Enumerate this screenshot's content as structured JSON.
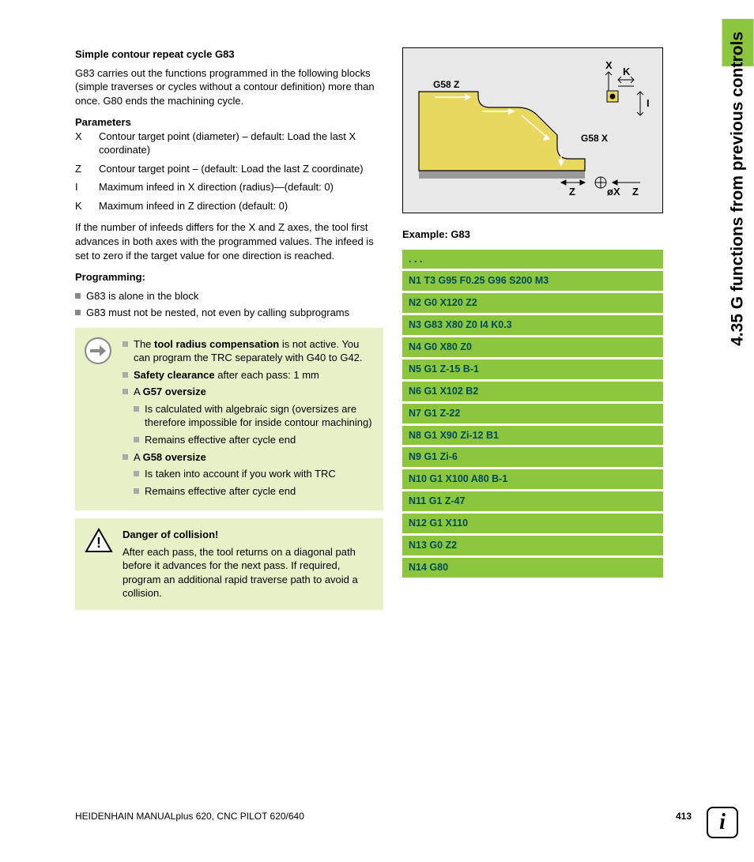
{
  "sideTab": "4.35 G functions from previous controls",
  "title": "Simple contour repeat cycle G83",
  "intro": "G83 carries out the functions programmed in the following blocks (simple traverses or cycles without a contour definition) more than once. G80 ends the machining cycle.",
  "paramsHeading": "Parameters",
  "params": [
    {
      "key": "X",
      "desc": "Contour target point (diameter) – default: Load the last X coordinate)"
    },
    {
      "key": "Z",
      "desc": "Contour target point – (default: Load the last Z coordinate)"
    },
    {
      "key": "I",
      "desc": "Maximum infeed in X direction (radius)—(default: 0)"
    },
    {
      "key": "K",
      "desc": "Maximum infeed in Z direction (default: 0)"
    }
  ],
  "midPara": "If the number of infeeds differs for the X and Z axes, the tool first advances in both axes with the programmed values. The infeed is set to zero if the target value for one direction is reached.",
  "progHeading": "Programming:",
  "progItems": [
    "G83 is alone in the block",
    "G83 must not be nested, not even by calling subprograms"
  ],
  "note1": {
    "l1a": "The ",
    "l1b": "tool radius compensation",
    "l1c": " is not active. You can program the TRC separately with G40 to G42.",
    "l2a": "Safety clearance",
    "l2b": " after each pass: 1 mm",
    "l3a": "A ",
    "l3b": "G57 oversize",
    "l3_1": "Is calculated with algebraic sign (oversizes are therefore impossible for inside contour machining)",
    "l3_2": "Remains effective after cycle end",
    "l4a": "A ",
    "l4b": "G58 oversize",
    "l4_1": "Is taken into account if you work with TRC",
    "l4_2": "Remains effective after cycle end"
  },
  "warn": {
    "title": "Danger of collision!",
    "body": "After each pass, the tool returns on a diagonal path before it advances for the next pass. If required, program an additional rapid traverse path to avoid a collision."
  },
  "diagram": {
    "labels": {
      "g58z": "G58 Z",
      "g58x": "G58 X",
      "x": "X",
      "k": "K",
      "i": "I",
      "z1": "Z",
      "ox": "øX",
      "z2": "Z"
    },
    "colors": {
      "frameBg": "#e8e8e8",
      "partFill": "#e8d85f",
      "partStroke": "#000000",
      "arrowStroke": "#000000"
    }
  },
  "exampleTitle": "Example: G83",
  "code": [
    ". . .",
    "N1 T3 G95 F0.25 G96 S200 M3",
    "N2 G0 X120 Z2",
    "N3 G83 X80 Z0 I4 K0.3",
    "N4 G0 X80 Z0",
    "N5 G1 Z-15 B-1",
    "N6 G1 X102 B2",
    "N7 G1 Z-22",
    "N8 G1 X90 Zi-12 B1",
    "N9 G1 Zi-6",
    "N10 G1 X100 A80 B-1",
    "N11 G1 Z-47",
    "N12 G1 X110",
    "N13 G0 Z2",
    "N14 G80"
  ],
  "footer": {
    "left": "HEIDENHAIN MANUALplus 620, CNC PILOT 620/640",
    "page": "413"
  },
  "colors": {
    "accent": "#8cc63f",
    "noteBg": "#e8f0c8",
    "codeText": "#004b5a"
  }
}
